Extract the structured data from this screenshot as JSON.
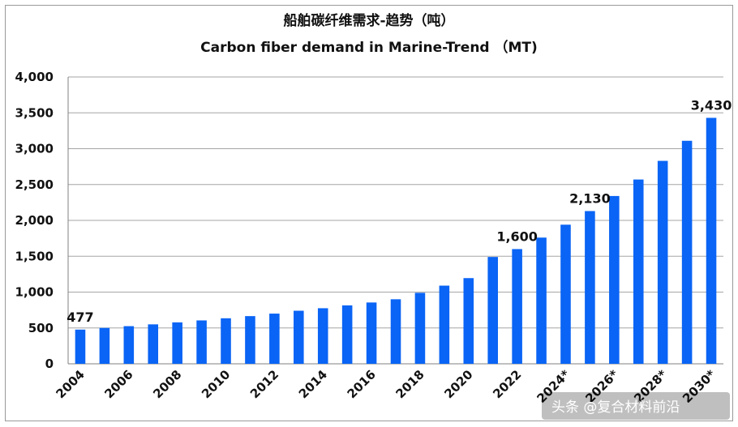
{
  "chart_data": {
    "type": "bar",
    "title": "船舶碳纤维需求-趋势（吨）",
    "subtitle": "Carbon fiber demand in Marine-Trend （MT)",
    "xlabel": "",
    "ylabel": "",
    "ylim": [
      0,
      4000
    ],
    "yticks": [
      "0",
      "500",
      "1,000",
      "1,500",
      "2,000",
      "2,500",
      "3,000",
      "3,500",
      "4,000"
    ],
    "ytick_values": [
      0,
      500,
      1000,
      1500,
      2000,
      2500,
      3000,
      3500,
      4000
    ],
    "grid": true,
    "legend": "none",
    "bar_color": "#0a64f5",
    "categories": [
      "2004",
      "2005",
      "2006",
      "2007",
      "2008",
      "2009",
      "2010",
      "2011",
      "2012",
      "2013",
      "2014",
      "2015",
      "2016",
      "2017",
      "2018",
      "2019",
      "2020",
      "2021",
      "2022",
      "2023",
      "2024*",
      "2025*",
      "2026*",
      "2027*",
      "2028*",
      "2029*",
      "2030*"
    ],
    "xtick_labels": [
      "2004",
      "",
      "2006",
      "",
      "2008",
      "",
      "2010",
      "",
      "2012",
      "",
      "2014",
      "",
      "2016",
      "",
      "2018",
      "",
      "2020",
      "",
      "2022",
      "",
      "2024*",
      "",
      "2026*",
      "",
      "2028*",
      "",
      "2030*"
    ],
    "values": [
      477,
      500,
      525,
      550,
      578,
      605,
      635,
      665,
      700,
      740,
      775,
      815,
      855,
      900,
      990,
      1090,
      1195,
      1490,
      1600,
      1760,
      1940,
      2130,
      2340,
      2570,
      2830,
      3110,
      3430
    ],
    "data_labels": [
      {
        "index": 0,
        "text": "477"
      },
      {
        "index": 18,
        "text": "1,600"
      },
      {
        "index": 21,
        "text": "2,130"
      },
      {
        "index": 26,
        "text": "3,430"
      }
    ]
  },
  "watermark": "头条 @复合材料前沿"
}
